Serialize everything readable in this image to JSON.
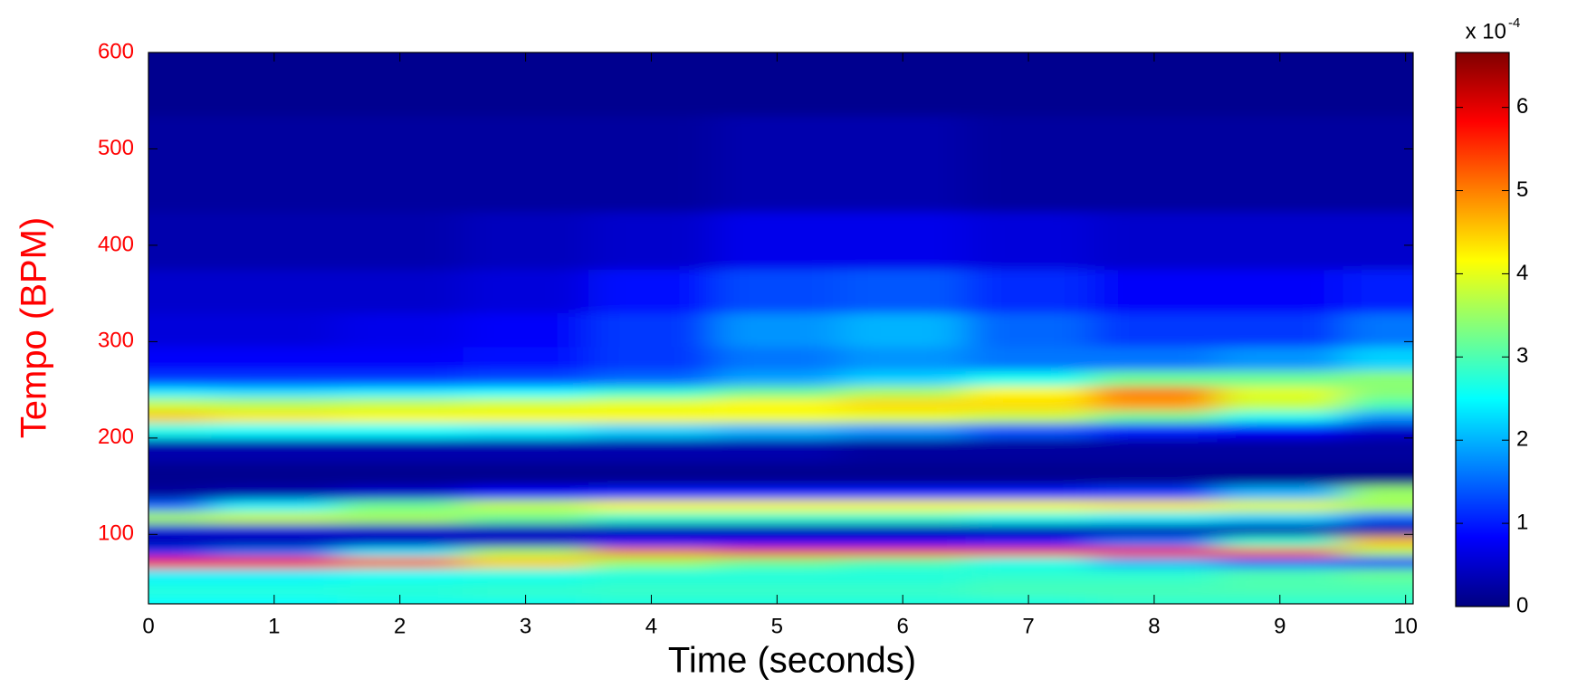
{
  "chart_data": {
    "type": "heatmap",
    "xlabel": "Time (seconds)",
    "ylabel": "Tempo (BPM)",
    "xlim": [
      0,
      10.06
    ],
    "xticks": [
      0,
      1,
      2,
      3,
      4,
      5,
      6,
      7,
      8,
      9,
      10
    ],
    "ylim": [
      28,
      600
    ],
    "yticks": [
      100,
      200,
      300,
      400,
      500,
      600
    ],
    "x": [
      0,
      1,
      2,
      3,
      4,
      5,
      6,
      7,
      8,
      9,
      10
    ],
    "y": [
      33,
      40,
      48,
      58,
      72,
      82,
      92,
      105,
      118,
      130,
      142,
      160,
      190,
      210,
      222,
      235,
      248,
      260,
      280,
      310,
      350,
      400,
      470,
      600
    ],
    "z": [
      [
        2.5,
        2.5,
        2.6,
        2.6,
        2.7,
        2.7,
        2.7,
        2.7,
        2.8,
        2.8,
        2.8
      ],
      [
        2.8,
        2.8,
        2.8,
        2.9,
        2.9,
        2.9,
        2.9,
        3,
        3,
        3,
        3
      ],
      [
        2.6,
        2.6,
        2.7,
        2.7,
        2.8,
        2.8,
        2.8,
        2.9,
        2.9,
        3,
        3
      ],
      [
        2.4,
        2.4,
        2.5,
        2.6,
        2.7,
        2.7,
        2.7,
        2.8,
        2.8,
        3,
        3.2
      ],
      [
        5.8,
        5.8,
        5.2,
        4.5,
        3.5,
        3.2,
        3,
        2.6,
        2,
        1.5,
        1
      ],
      [
        1.2,
        1.6,
        2.4,
        3.6,
        5,
        5.4,
        5.4,
        5.4,
        5.8,
        5.2,
        3.6
      ],
      [
        0.3,
        0.3,
        0.4,
        0.5,
        0.8,
        0.8,
        0.8,
        1,
        1.6,
        2.8,
        4.6
      ],
      [
        0.6,
        0.6,
        0.5,
        0.4,
        0.3,
        0.3,
        0.3,
        0.3,
        0.3,
        0.3,
        0.3
      ],
      [
        3.6,
        3.8,
        3.6,
        3.2,
        2.8,
        2.8,
        2.8,
        2.6,
        2.4,
        2.2,
        1.5
      ],
      [
        1.5,
        2.4,
        3.2,
        3.8,
        4.2,
        4.2,
        4.2,
        4.2,
        4.3,
        4,
        3.6
      ],
      [
        0.2,
        0.3,
        0.5,
        0.8,
        1,
        1,
        1,
        1,
        1.2,
        2,
        3.5
      ],
      [
        0.1,
        0.1,
        0.1,
        0.1,
        0.1,
        0.1,
        0.1,
        0.1,
        0.1,
        0.1,
        0.1
      ],
      [
        0.3,
        0.3,
        0.3,
        0.3,
        0.3,
        0.3,
        0.2,
        0.2,
        0.2,
        0.2,
        0.2
      ],
      [
        2.6,
        2.5,
        2.5,
        2.4,
        2.2,
        2,
        1.8,
        1.4,
        1,
        0.8,
        0.5
      ],
      [
        4.5,
        4.3,
        4.2,
        4.2,
        4.2,
        4.1,
        4,
        3.8,
        3.2,
        2.6,
        1.8
      ],
      [
        3.8,
        3.7,
        3.8,
        3.9,
        4,
        4.2,
        4.4,
        4.4,
        4.8,
        3.8,
        3
      ],
      [
        2.4,
        2.3,
        2.4,
        2.5,
        2.8,
        3.2,
        3.6,
        4.2,
        5,
        4,
        3.4
      ],
      [
        1.2,
        1.2,
        1.2,
        1.3,
        1.5,
        1.9,
        2.2,
        2.6,
        3.2,
        3.2,
        3.4
      ],
      [
        0.8,
        0.8,
        0.8,
        0.9,
        1.2,
        1.6,
        1.8,
        1.6,
        1.6,
        1.8,
        2.2
      ],
      [
        0.6,
        0.6,
        0.7,
        0.8,
        1.2,
        1.8,
        2,
        1.5,
        1.2,
        1.2,
        1.6
      ],
      [
        0.5,
        0.5,
        0.5,
        0.6,
        0.9,
        1.3,
        1.4,
        1.1,
        0.8,
        0.8,
        1
      ],
      [
        0.3,
        0.3,
        0.3,
        0.4,
        0.5,
        0.7,
        0.7,
        0.6,
        0.5,
        0.5,
        0.5
      ],
      [
        0.2,
        0.2,
        0.2,
        0.2,
        0.2,
        0.3,
        0.3,
        0.2,
        0.2,
        0.2,
        0.2
      ],
      [
        0.1,
        0.1,
        0.1,
        0.1,
        0.1,
        0.1,
        0.1,
        0.1,
        0.1,
        0.1,
        0.1
      ]
    ],
    "colormap": "jet",
    "clim": [
      0,
      6.66
    ],
    "cticks": [
      0,
      1,
      2,
      3,
      4,
      5,
      6
    ],
    "colorbar_multiplier": "x 10",
    "colorbar_exponent": "-4",
    "ylabel_color": "#ff0000",
    "xlabel_color": "#000000"
  }
}
